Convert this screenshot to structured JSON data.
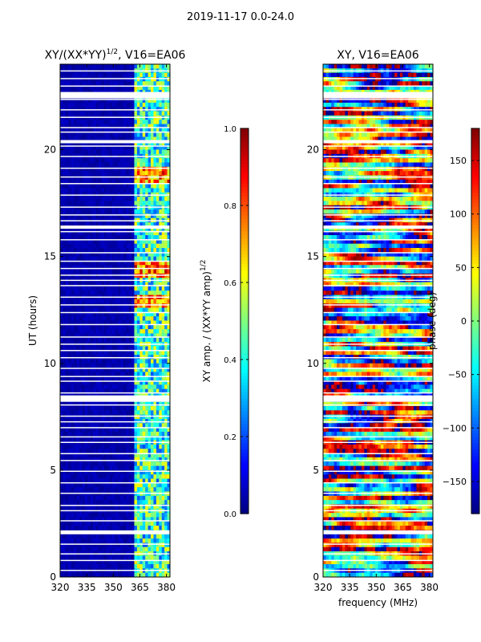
{
  "suptitle": "2019-11-17 0.0-24.0",
  "chart_data": [
    {
      "type": "heatmap",
      "title_main": "XY/(XX*YY)",
      "title_exp": "1/2",
      "title_tail": ", V16=EA06",
      "xlabel": "",
      "ylabel": "UT (hours)",
      "xlim": [
        320,
        382
      ],
      "ylim": [
        0,
        24
      ],
      "xticks": [
        320,
        335,
        350,
        365,
        380
      ],
      "yticks": [
        0,
        5,
        10,
        15,
        20
      ],
      "colorbar": {
        "label_main": "XY amp. / (XX*YY amp)",
        "label_exp": "1/2",
        "range": [
          0.0,
          1.0
        ],
        "ticks": [
          "0.0",
          "0.2",
          "0.4",
          "0.6",
          "0.8",
          "1.0"
        ],
        "tick_values": [
          0.0,
          0.2,
          0.4,
          0.6,
          0.8,
          1.0
        ],
        "colormap": "jet"
      }
    },
    {
      "type": "heatmap",
      "title_main": "XY, V16=EA06",
      "title_exp": "",
      "title_tail": "",
      "xlabel": "frequency (MHz)",
      "ylabel": "",
      "xlim": [
        320,
        382
      ],
      "ylim": [
        0,
        24
      ],
      "xticks": [
        320,
        335,
        350,
        365,
        380
      ],
      "yticks": [
        0,
        5,
        10,
        15,
        20
      ],
      "colorbar": {
        "label_main": "phase (deg)",
        "label_exp": "",
        "range": [
          -180,
          180
        ],
        "ticks": [
          "−150",
          "−100",
          "−50",
          "0",
          "50",
          "100",
          "150"
        ],
        "tick_values": [
          -150,
          -100,
          -50,
          0,
          50,
          100,
          150
        ],
        "colormap": "jet"
      }
    }
  ]
}
